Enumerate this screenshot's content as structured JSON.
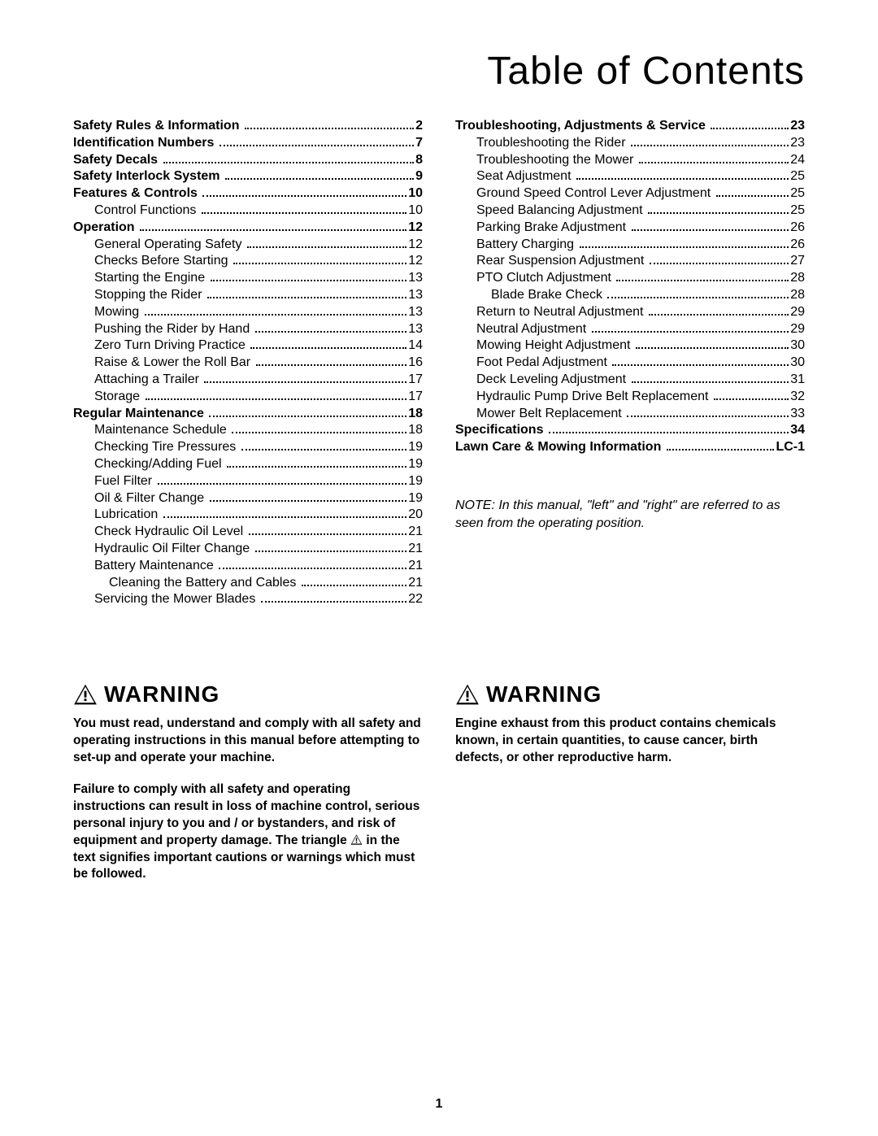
{
  "title": "Table of Contents",
  "left_toc": [
    {
      "level": "section",
      "label": "Safety Rules & Information",
      "page": "2"
    },
    {
      "level": "section",
      "label": "Identification Numbers",
      "page": "7"
    },
    {
      "level": "section",
      "label": "Safety Decals",
      "page": "8"
    },
    {
      "level": "section",
      "label": "Safety Interlock System",
      "page": "9"
    },
    {
      "level": "section",
      "label": "Features & Controls",
      "page": "10"
    },
    {
      "level": "sub",
      "label": "Control Functions",
      "page": "10"
    },
    {
      "level": "section",
      "label": "Operation",
      "page": "12"
    },
    {
      "level": "sub",
      "label": "General Operating Safety",
      "page": "12"
    },
    {
      "level": "sub",
      "label": "Checks Before Starting",
      "page": "12"
    },
    {
      "level": "sub",
      "label": "Starting the Engine",
      "page": "13"
    },
    {
      "level": "sub",
      "label": "Stopping the Rider",
      "page": "13"
    },
    {
      "level": "sub",
      "label": "Mowing",
      "page": "13"
    },
    {
      "level": "sub",
      "label": "Pushing the Rider by Hand",
      "page": "13"
    },
    {
      "level": "sub",
      "label": "Zero Turn Driving Practice",
      "page": "14"
    },
    {
      "level": "sub",
      "label": "Raise & Lower the Roll Bar",
      "page": "16"
    },
    {
      "level": "sub",
      "label": "Attaching a Trailer",
      "page": "17"
    },
    {
      "level": "sub",
      "label": "Storage",
      "page": "17"
    },
    {
      "level": "section",
      "label": "Regular Maintenance",
      "page": "18"
    },
    {
      "level": "sub",
      "label": "Maintenance Schedule",
      "page": "18"
    },
    {
      "level": "sub",
      "label": "Checking Tire Pressures",
      "page": "19"
    },
    {
      "level": "sub",
      "label": "Checking/Adding Fuel",
      "page": "19"
    },
    {
      "level": "sub",
      "label": "Fuel Filter",
      "page": "19"
    },
    {
      "level": "sub",
      "label": "Oil & Filter Change",
      "page": "19"
    },
    {
      "level": "sub",
      "label": "Lubrication",
      "page": "20"
    },
    {
      "level": "sub",
      "label": "Check Hydraulic Oil Level",
      "page": "21"
    },
    {
      "level": "sub",
      "label": "Hydraulic Oil Filter Change",
      "page": "21"
    },
    {
      "level": "sub",
      "label": "Battery Maintenance",
      "page": "21"
    },
    {
      "level": "sub2",
      "label": "Cleaning the Battery and Cables",
      "page": "21"
    },
    {
      "level": "sub",
      "label": "Servicing the Mower Blades",
      "page": "22"
    }
  ],
  "right_toc": [
    {
      "level": "section",
      "label": "Troubleshooting, Adjustments & Service",
      "page": "23"
    },
    {
      "level": "sub",
      "label": "Troubleshooting the Rider",
      "page": "23"
    },
    {
      "level": "sub",
      "label": "Troubleshooting the Mower",
      "page": "24"
    },
    {
      "level": "sub",
      "label": "Seat Adjustment",
      "page": "25"
    },
    {
      "level": "sub",
      "label": "Ground Speed Control Lever Adjustment",
      "page": "25"
    },
    {
      "level": "sub",
      "label": "Speed Balancing Adjustment",
      "page": "25"
    },
    {
      "level": "sub",
      "label": "Parking Brake Adjustment",
      "page": "26"
    },
    {
      "level": "sub",
      "label": "Battery Charging",
      "page": "26"
    },
    {
      "level": "sub",
      "label": "Rear Suspension Adjustment",
      "page": "27"
    },
    {
      "level": "sub",
      "label": "PTO Clutch Adjustment",
      "page": "28"
    },
    {
      "level": "sub2",
      "label": "Blade Brake Check",
      "page": "28"
    },
    {
      "level": "sub",
      "label": "Return to Neutral Adjustment",
      "page": "29"
    },
    {
      "level": "sub",
      "label": "Neutral Adjustment",
      "page": "29"
    },
    {
      "level": "sub",
      "label": "Mowing Height Adjustment",
      "page": "30"
    },
    {
      "level": "sub",
      "label": "Foot Pedal Adjustment",
      "page": "30"
    },
    {
      "level": "sub",
      "label": "Deck Leveling Adjustment",
      "page": "31"
    },
    {
      "level": "sub",
      "label": "Hydraulic Pump Drive Belt Replacement",
      "page": "32"
    },
    {
      "level": "sub",
      "label": "Mower Belt Replacement",
      "page": "33"
    },
    {
      "level": "section",
      "label": "Specifications",
      "page": "34"
    },
    {
      "level": "section",
      "label": "Lawn Care & Mowing Information",
      "page": "LC-1"
    }
  ],
  "note": "NOTE: In this manual, \"left\" and \"right\" are referred to as seen from the operating position.",
  "warning_heading": "WARNING",
  "warning_left": {
    "p1": "You must read, understand and comply with all safety and operating instructions in this manual before attempting to set-up and operate your machine.",
    "p2_pre": "Failure to comply with all safety and operating instructions can result in loss of machine control, serious personal injury to you and / or bystanders, and risk of equipment and property damage.  The triangle ",
    "p2_post": " in the text signifies important cautions or warnings which must be followed."
  },
  "warning_right": {
    "p1": "Engine exhaust from this product contains chemicals known, in certain quantities, to cause cancer, birth defects, or other reproductive harm."
  },
  "page_number": "1",
  "colors": {
    "text": "#000000",
    "background": "#ffffff"
  },
  "typography": {
    "title_font": "Impact / Arial Black",
    "title_size_pt": 36,
    "body_font": "Arial",
    "body_size_pt": 12,
    "warning_head_size_pt": 21
  }
}
